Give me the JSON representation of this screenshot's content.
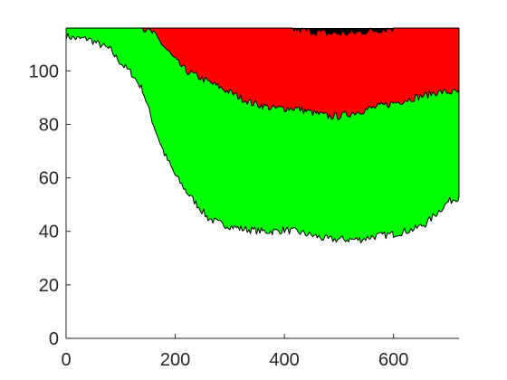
{
  "chart_data": {
    "type": "area",
    "title": "",
    "xlabel": "",
    "ylabel": "",
    "xlim": [
      0,
      720
    ],
    "ylim": [
      0,
      116
    ],
    "grid": false,
    "legend": "none",
    "x_ticks": [
      0,
      200,
      400,
      600
    ],
    "y_ticks": [
      0,
      20,
      40,
      60,
      80,
      100
    ],
    "x_tick_labels": [
      "0",
      "200",
      "400",
      "600"
    ],
    "y_tick_labels": [
      "0",
      "20",
      "40",
      "60",
      "80",
      "100"
    ],
    "x": [
      0,
      20,
      40,
      60,
      80,
      100,
      120,
      140,
      160,
      180,
      200,
      220,
      240,
      260,
      280,
      300,
      320,
      340,
      360,
      380,
      400,
      420,
      440,
      460,
      480,
      500,
      520,
      540,
      560,
      580,
      600,
      620,
      640,
      660,
      680,
      700,
      720
    ],
    "series": [
      {
        "color": "#00ff00",
        "values": [
          113,
          112,
          112,
          110,
          108,
          103,
          99,
          93,
          80,
          69,
          61,
          55,
          50,
          45,
          43,
          42,
          41,
          40.5,
          40,
          40,
          40.5,
          40,
          39,
          38,
          37,
          37,
          37,
          37,
          38,
          38.5,
          39,
          40,
          41,
          43,
          47,
          51,
          53
        ]
      },
      {
        "color": "#ff0000",
        "values": [
          116,
          116,
          116,
          116,
          116,
          116,
          116,
          116,
          114,
          109,
          104,
          100,
          98,
          96,
          94,
          92,
          90,
          88,
          87,
          86,
          86,
          86,
          85,
          84,
          83,
          83,
          84,
          85,
          86,
          87,
          88,
          89,
          90,
          91,
          92,
          92,
          92
        ]
      },
      {
        "color": "#000000",
        "values": [
          116,
          116,
          116,
          116,
          116,
          116,
          116,
          116,
          116,
          116,
          116,
          116,
          116,
          116,
          116,
          116,
          116,
          116,
          116,
          116,
          116,
          115.5,
          115,
          114.5,
          114,
          114,
          114,
          114.5,
          115,
          115.5,
          116,
          116,
          116,
          116,
          116,
          116,
          116
        ]
      }
    ],
    "top_color": "#000000",
    "noise_amplitude": 1.4
  }
}
